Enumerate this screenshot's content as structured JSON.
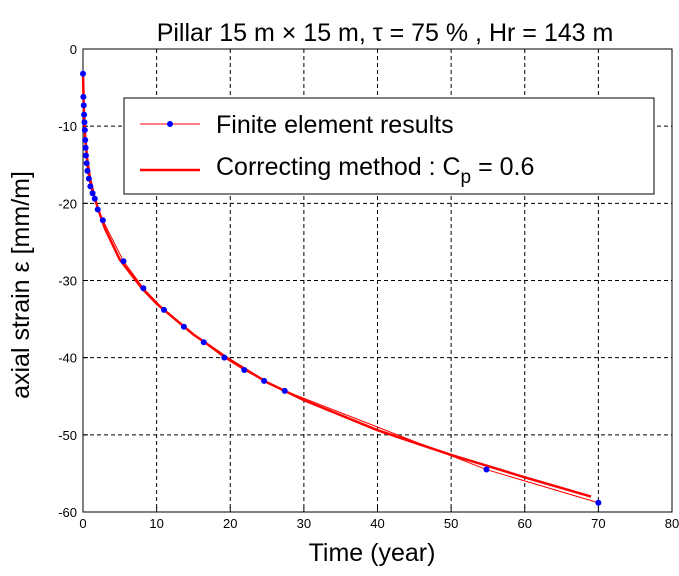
{
  "chart_data": {
    "type": "line",
    "title": "Pillar 15 m × 15 m, τ = 75 % , Hr = 143 m",
    "xlabel": "Time (year)",
    "ylabel": "axial strain ε  [mm/m]",
    "xlim": [
      0,
      80
    ],
    "ylim": [
      -60,
      0
    ],
    "xticks": [
      0,
      10,
      20,
      30,
      40,
      50,
      60,
      70,
      80
    ],
    "yticks": [
      0,
      -10,
      -20,
      -30,
      -40,
      -50,
      -60
    ],
    "grid": true,
    "legend_position": "top-right",
    "legend": {
      "fe_label": "Finite element results",
      "corr_label_main": "Correcting method : C",
      "corr_label_sub": "p",
      "corr_label_tail": " = 0.6"
    },
    "series": [
      {
        "name": "Finite element results",
        "color": "#ff0000",
        "marker_color": "#0000ff",
        "x": [
          0,
          0.05,
          0.1,
          0.15,
          0.2,
          0.25,
          0.3,
          0.35,
          0.4,
          0.5,
          0.6,
          0.8,
          1.0,
          1.3,
          1.6,
          2.0,
          2.7,
          5.5,
          8.2,
          11.0,
          13.7,
          16.4,
          19.2,
          21.9,
          24.6,
          27.4,
          54.8,
          70.0
        ],
        "y": [
          -3.2,
          -6.2,
          -7.3,
          -8.5,
          -9.5,
          -10.5,
          -11.8,
          -12.8,
          -13.8,
          -14.8,
          -15.8,
          -16.8,
          -17.8,
          -18.7,
          -19.4,
          -20.8,
          -22.2,
          -27.5,
          -31.0,
          -33.8,
          -36.0,
          -38.0,
          -40.0,
          -41.6,
          -43.0,
          -44.3,
          -54.5,
          -58.8
        ]
      },
      {
        "name": "Correcting method : Cp = 0.6",
        "color": "#ff0000",
        "x": [
          0,
          0.1,
          0.3,
          0.6,
          1.0,
          1.5,
          2.0,
          3.0,
          5.0,
          8.0,
          10.0,
          15.0,
          20.0,
          25.0,
          30.0,
          40.0,
          50.0,
          60.0,
          69.0
        ],
        "y": [
          -3.0,
          -7.5,
          -11.5,
          -14.5,
          -17.0,
          -19.0,
          -20.6,
          -23.3,
          -27.3,
          -31.0,
          -33.0,
          -37.0,
          -40.3,
          -43.2,
          -45.5,
          -49.4,
          -52.6,
          -55.5,
          -58.0
        ]
      }
    ]
  }
}
